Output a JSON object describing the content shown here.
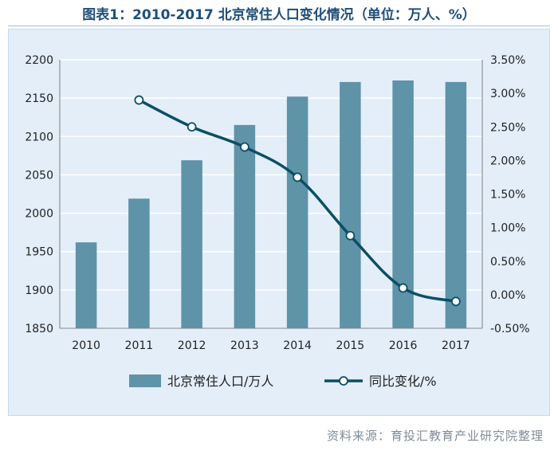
{
  "title": "图表1：2010-2017 北京常住人口变化情况（单位：万人、%）",
  "source": "资料来源：育投汇教育产业研究院整理",
  "colors": {
    "bar": "#5e93a8",
    "line": "#0b4f66",
    "title": "#1f4e79",
    "background": "#e3eef9",
    "grid": "#ffffff"
  },
  "chart_data": {
    "type": "bar",
    "categories": [
      "2010",
      "2011",
      "2012",
      "2013",
      "2014",
      "2015",
      "2016",
      "2017"
    ],
    "series": [
      {
        "name": "北京常住人口/万人",
        "type": "bar",
        "axis": "left",
        "values": [
          1962,
          2019,
          2069,
          2115,
          2152,
          2171,
          2173,
          2171
        ]
      },
      {
        "name": "同比变化/%",
        "type": "line",
        "axis": "right",
        "values": [
          null,
          2.9,
          2.5,
          2.2,
          1.75,
          0.88,
          0.1,
          -0.1
        ]
      }
    ],
    "y_left": {
      "min": 1850,
      "max": 2200,
      "ticks": [
        "1850",
        "1900",
        "1950",
        "2000",
        "2050",
        "2100",
        "2150",
        "2200"
      ]
    },
    "y_right": {
      "min": -0.5,
      "max": 3.5,
      "ticks": [
        "-0.50%",
        "0.00%",
        "0.50%",
        "1.00%",
        "1.50%",
        "2.00%",
        "2.50%",
        "3.00%",
        "3.50%"
      ]
    },
    "grid": true,
    "legend": "bottom"
  }
}
